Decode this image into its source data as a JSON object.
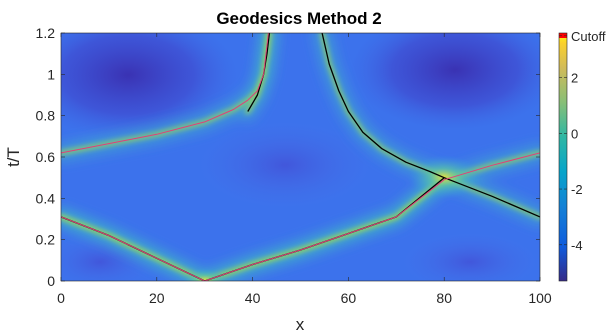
{
  "chart_data": {
    "type": "heatmap",
    "title": "Geodesics Method 2",
    "xlabel": "x",
    "ylabel": "t/T",
    "xlim": [
      0,
      100
    ],
    "ylim": [
      0,
      1.2
    ],
    "x_ticks": [
      "0",
      "20",
      "40",
      "60",
      "80",
      "100"
    ],
    "y_ticks": [
      "0",
      "0.2",
      "0.4",
      "0.6",
      "0.8",
      "1",
      "1.2"
    ],
    "colorbar": {
      "range": [
        -5.3,
        3.6
      ],
      "ticks": [
        "Cutoff",
        "2",
        "0",
        "-2",
        "-4"
      ],
      "tick_values": [
        3.5,
        2,
        0,
        -2,
        -4
      ],
      "colormap": "parula",
      "cutoff_color": "#ff0000"
    },
    "series": [
      {
        "color": "#000000",
        "points": [
          [
            0,
            0.31
          ],
          [
            10,
            0.22
          ],
          [
            20,
            0.11
          ],
          [
            30,
            0.0
          ],
          [
            35,
            0.04
          ],
          [
            40,
            0.08
          ],
          [
            50,
            0.15
          ],
          [
            60,
            0.23
          ],
          [
            70,
            0.31
          ],
          [
            80,
            0.5
          ],
          [
            90,
            0.41
          ],
          [
            100,
            0.31
          ]
        ]
      },
      {
        "color": "#000000",
        "points": [
          [
            54.5,
            1.2
          ],
          [
            56,
            1.05
          ],
          [
            58,
            0.92
          ],
          [
            60,
            0.82
          ],
          [
            63,
            0.72
          ],
          [
            67,
            0.64
          ],
          [
            72,
            0.575
          ],
          [
            77,
            0.53
          ],
          [
            80,
            0.5
          ]
        ]
      },
      {
        "color": "#000000",
        "points": [
          [
            39,
            0.82
          ],
          [
            41,
            0.9
          ],
          [
            42.3,
            1.0
          ],
          [
            43,
            1.1
          ],
          [
            43.5,
            1.2
          ]
        ]
      },
      {
        "color": "#e0407a",
        "points": [
          [
            0,
            0.62
          ],
          [
            10,
            0.665
          ],
          [
            20,
            0.71
          ],
          [
            30,
            0.77
          ],
          [
            36,
            0.83
          ],
          [
            39,
            0.875
          ],
          [
            41,
            0.92
          ],
          [
            42.3,
            1.0
          ],
          [
            43.3,
            1.2
          ]
        ]
      },
      {
        "color": "#e0407a",
        "points": [
          [
            30,
            0.0
          ],
          [
            40,
            0.08
          ],
          [
            50,
            0.15
          ],
          [
            60,
            0.23
          ],
          [
            70,
            0.31
          ],
          [
            80,
            0.49
          ],
          [
            90,
            0.56
          ],
          [
            100,
            0.62
          ]
        ]
      },
      {
        "color": "#e0407a",
        "points": [
          [
            0,
            0.31
          ],
          [
            10,
            0.22
          ],
          [
            20,
            0.11
          ],
          [
            30,
            0.0
          ]
        ]
      }
    ]
  }
}
